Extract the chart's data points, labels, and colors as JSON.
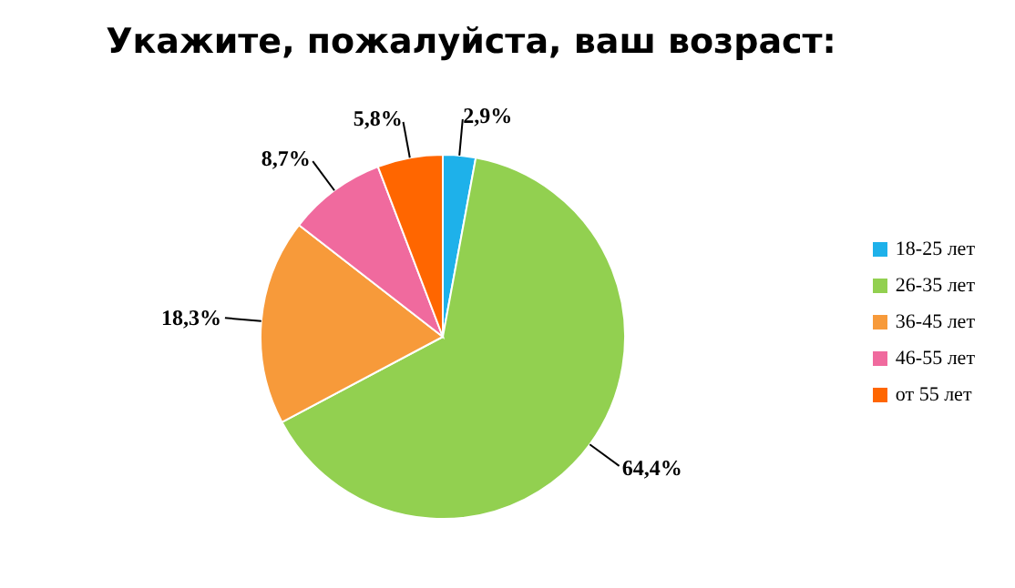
{
  "chart_data": {
    "type": "pie",
    "title": "Укажите, пожалуйста, ваш возраст:",
    "categories": [
      "18-25 лет",
      "26-35 лет",
      "36-45 лет",
      "46-55 лет",
      "от 55 лет"
    ],
    "values": [
      2.9,
      64.4,
      18.3,
      8.7,
      5.8
    ],
    "colors": [
      "#1eb1ea",
      "#92d050",
      "#f79a3a",
      "#f06a9e",
      "#ff6600"
    ],
    "value_labels": [
      "2,9%",
      "64,4%",
      "18,3%",
      "8,7%",
      "5,8%"
    ],
    "legend": "right"
  }
}
